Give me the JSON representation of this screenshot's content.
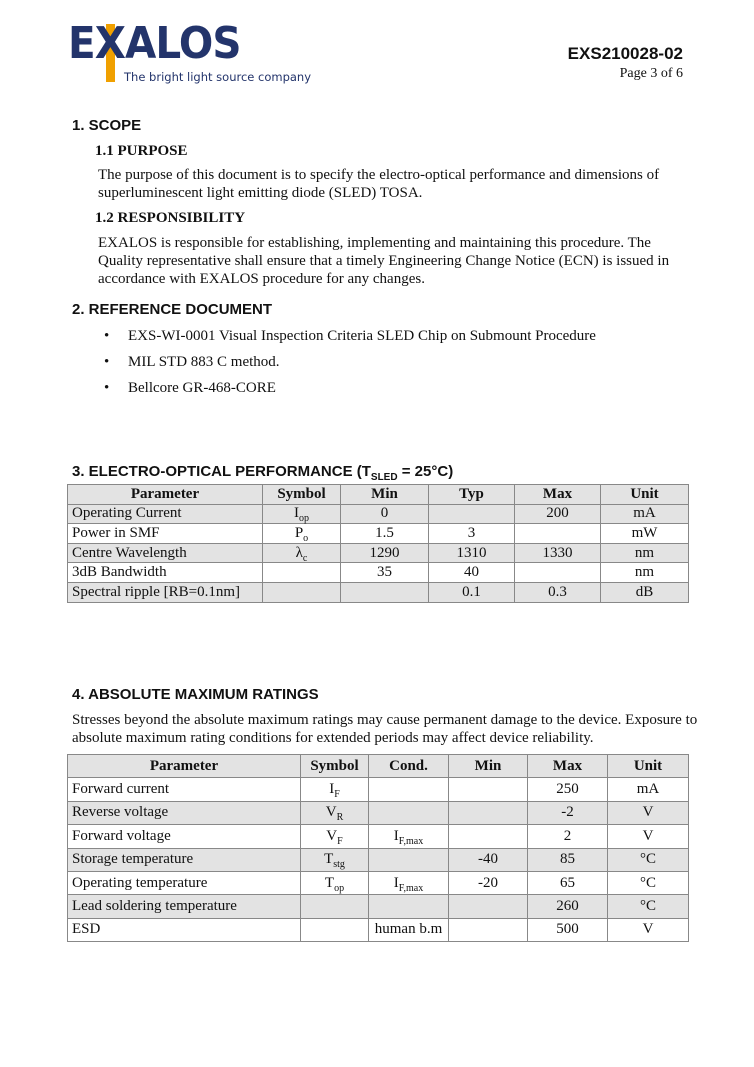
{
  "header": {
    "logo_text": "EXALOS",
    "logo_tagline": "The bright light source company",
    "doc_number": "EXS210028-02",
    "page": "Page 3 of 6"
  },
  "colors": {
    "logo_blue": "#23346b",
    "logo_orange": "#f0a000",
    "table_shade": "#e3e3e3"
  },
  "sections": {
    "scope": {
      "title": "1.  SCOPE",
      "purpose_title": "1.1 PURPOSE",
      "purpose_text": "The purpose of this document is to specify the electro-optical performance and dimensions of superluminescent light emitting diode (SLED) TOSA.",
      "responsibility_title": "1.2 RESPONSIBILITY",
      "responsibility_text": "EXALOS is responsible for establishing, implementing and maintaining this procedure.  The Quality representative shall ensure that a timely Engineering Change Notice (ECN) is issued in accordance with EXALOS procedure for any changes."
    },
    "reference": {
      "title": "2.  REFERENCE DOCUMENT",
      "items": [
        "EXS-WI-0001 Visual Inspection Criteria SLED Chip on Submount Procedure",
        "MIL STD 883 C method.",
        "Bellcore GR-468-CORE"
      ]
    },
    "performance": {
      "title": "3.  ELECTRO-OPTICAL PERFORMANCE (T",
      "title_sub": "SLED",
      "title_end": " = 25°C)",
      "headers": [
        "Parameter",
        "Symbol",
        "Min",
        "Typ",
        "Max",
        "Unit"
      ],
      "rows": [
        {
          "param": "Operating Current",
          "sym": "I",
          "sub": "op",
          "min": "0",
          "typ": "",
          "max": "200",
          "unit": "mA"
        },
        {
          "param": "Power in SMF",
          "sym": "P",
          "sub": "o",
          "min": "1.5",
          "typ": "3",
          "max": "",
          "unit": "mW"
        },
        {
          "param": "Centre Wavelength",
          "sym": "λ",
          "sub": "c",
          "min": "1290",
          "typ": "1310",
          "max": "1330",
          "unit": "nm"
        },
        {
          "param": "3dB Bandwidth",
          "sym": "",
          "sub": "",
          "min": "35",
          "typ": "40",
          "max": "",
          "unit": "nm"
        },
        {
          "param": "Spectral ripple [RB=0.1nm]",
          "sym": "",
          "sub": "",
          "min": "",
          "typ": "0.1",
          "max": "0.3",
          "unit": "dB"
        }
      ]
    },
    "ratings": {
      "title": "4.  ABSOLUTE MAXIMUM RATINGS",
      "text": "Stresses beyond the absolute maximum ratings may cause permanent damage to the device. Exposure to absolute maximum rating conditions for extended periods may affect device reliability.",
      "headers": [
        "Parameter",
        "Symbol",
        "Cond.",
        "Min",
        "Max",
        "Unit"
      ],
      "rows": [
        {
          "param": "Forward current",
          "sym": "I",
          "sub": "F",
          "cond": "",
          "cond_sub": "",
          "min": "",
          "max": "250",
          "unit": "mA"
        },
        {
          "param": "Reverse voltage",
          "sym": "V",
          "sub": "R",
          "cond": "",
          "cond_sub": "",
          "min": "",
          "max": "-2",
          "unit": "V"
        },
        {
          "param": "Forward voltage",
          "sym": "V",
          "sub": "F",
          "cond": "I",
          "cond_sub": "F,max",
          "min": "",
          "max": "2",
          "unit": "V"
        },
        {
          "param": "Storage temperature",
          "sym": "T",
          "sub": "stg",
          "cond": "",
          "cond_sub": "",
          "min": "-40",
          "max": "85",
          "unit": "°C"
        },
        {
          "param": "Operating temperature",
          "sym": "T",
          "sub": "op",
          "cond": "I",
          "cond_sub": "F,max",
          "min": "-20",
          "max": "65",
          "unit": "°C"
        },
        {
          "param": "Lead soldering temperature",
          "sym": "",
          "sub": "",
          "cond": "",
          "cond_sub": "",
          "min": "",
          "max": "260",
          "unit": "°C"
        },
        {
          "param": "ESD",
          "sym": "",
          "sub": "",
          "cond": "human b.m",
          "cond_sub": "",
          "min": "",
          "max": "500",
          "unit": "V"
        }
      ]
    }
  }
}
